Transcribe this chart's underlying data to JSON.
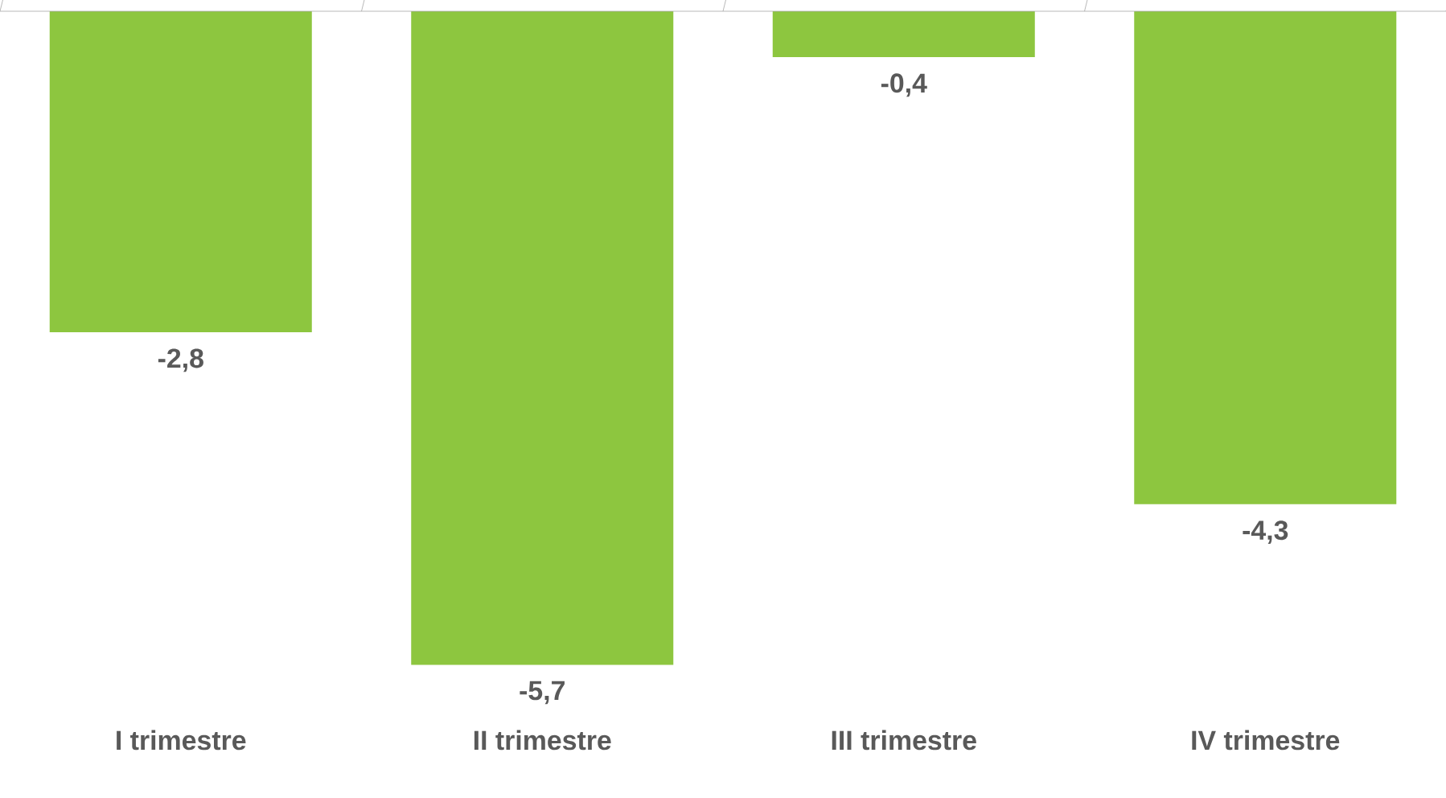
{
  "chart_data": {
    "type": "bar",
    "categories": [
      "I trimestre",
      "II trimestre",
      "III trimestre",
      "IV trimestre"
    ],
    "values": [
      -2.8,
      -5.7,
      -0.4,
      -4.3
    ],
    "value_labels": [
      "-2,8",
      "-5,7",
      "-0,4",
      "-4,3"
    ],
    "color": "#8dc63f"
  }
}
